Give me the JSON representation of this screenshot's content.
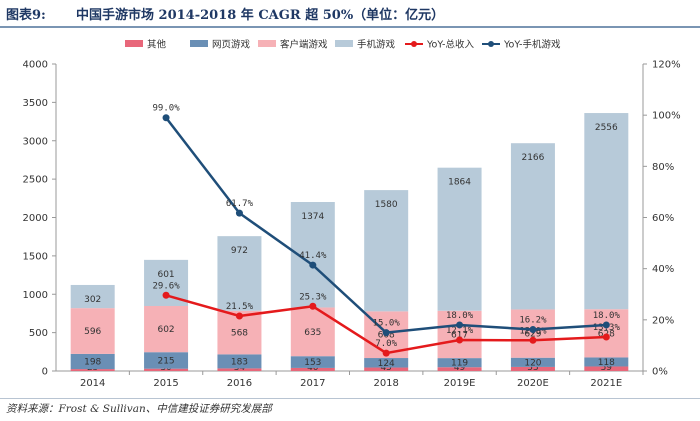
{
  "header": {
    "label": "图表9:",
    "title": "中国手游市场 2014-2018 年 CAGR 超 50%（单位：亿元）"
  },
  "source": "资料来源：Frost & Sullivan、中信建投证券研究发展部",
  "colors": {
    "other": "#e8677a",
    "web": "#6a8fb5",
    "client": "#f6b1b6",
    "mobile": "#b7cad9",
    "yoy_total": "#e41a1c",
    "yoy_mobile": "#1f4e79",
    "axis": "#999999"
  },
  "chart_data": {
    "type": "bar",
    "stacked": true,
    "categories": [
      "2014",
      "2015",
      "2016",
      "2017",
      "2018",
      "2019E",
      "2020E",
      "2021E"
    ],
    "series": [
      {
        "key": "other",
        "name": "其他",
        "values": [
          25,
          30,
          34,
          40,
          45,
          49,
          53,
          59
        ]
      },
      {
        "key": "web",
        "name": "网页游戏",
        "values": [
          198,
          215,
          183,
          153,
          124,
          119,
          120,
          118
        ]
      },
      {
        "key": "client",
        "name": "客户端游戏",
        "values": [
          596,
          602,
          568,
          635,
          608,
          617,
          629,
          628
        ]
      },
      {
        "key": "mobile",
        "name": "手机游戏",
        "values": [
          302,
          601,
          972,
          1374,
          1580,
          1864,
          2166,
          2556
        ]
      }
    ],
    "lines": [
      {
        "key": "yoy_total",
        "name": "YoY-总收入",
        "axis": "right",
        "values": [
          null,
          29.6,
          21.5,
          25.3,
          7.0,
          12.1,
          12.0,
          13.3
        ],
        "labels": [
          null,
          "29.6%",
          "21.5%",
          "25.3%",
          "7.0%",
          "12.1%",
          "12.0%",
          "13.3%"
        ]
      },
      {
        "key": "yoy_mobile",
        "name": "YoY-手机游戏",
        "axis": "right",
        "values": [
          null,
          99.0,
          61.7,
          41.4,
          15.0,
          18.0,
          16.2,
          18.0
        ],
        "labels": [
          null,
          "99.0%",
          "61.7%",
          "41.4%",
          "15.0%",
          "18.0%",
          "16.2%",
          "18.0%"
        ]
      }
    ],
    "y_left": {
      "min": 0,
      "max": 4000,
      "ticks": [
        0,
        500,
        1000,
        1500,
        2000,
        2500,
        3000,
        3500,
        4000
      ]
    },
    "y_right": {
      "min": 0,
      "max": 120,
      "ticks": [
        "0%",
        "20%",
        "40%",
        "60%",
        "80%",
        "100%",
        "120%"
      ]
    },
    "legend": {
      "position": "top",
      "items": [
        "其他",
        "网页游戏",
        "客户端游戏",
        "手机游戏",
        "YoY-总收入",
        "YoY-手机游戏"
      ]
    },
    "grid": false
  }
}
